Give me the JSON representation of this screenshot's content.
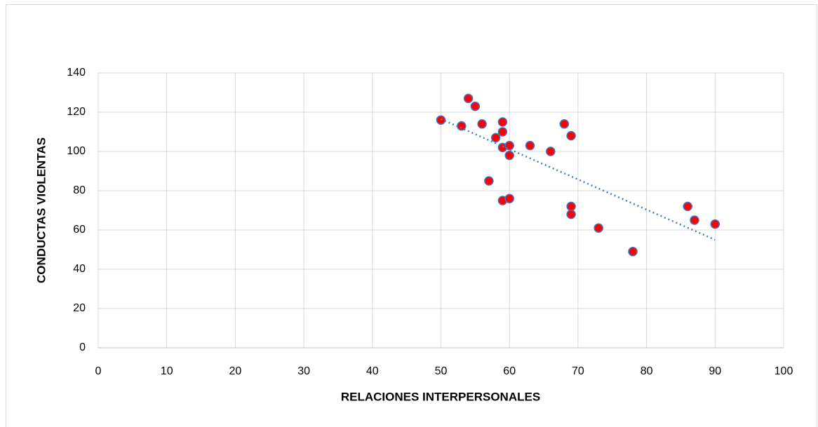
{
  "chart_data": {
    "type": "scatter",
    "x_label": "RELACIONES INTERPERSONALES",
    "y_label": "CONDUCTAS VIOLENTAS",
    "x": [
      50,
      53,
      54,
      55,
      56,
      57,
      58,
      59,
      59,
      59,
      59,
      60,
      60,
      60,
      63,
      66,
      68,
      69,
      69,
      69,
      73,
      78,
      86,
      87,
      90
    ],
    "series": [
      {
        "color": "#ff0000",
        "values": [
          116,
          113,
          127,
          123,
          114,
          85,
          107,
          115,
          110,
          102,
          75,
          103,
          98,
          76,
          103,
          100,
          114,
          108,
          72,
          68,
          61,
          49,
          72,
          65,
          63
        ]
      }
    ],
    "trendline": {
      "x": [
        50,
        90
      ],
      "y": [
        116.5,
        55
      ],
      "color": "#4a7ebb"
    },
    "xlim": [
      0,
      100
    ],
    "xticks": [
      0,
      10,
      20,
      30,
      40,
      50,
      60,
      70,
      80,
      90,
      100
    ],
    "ylim": [
      0,
      140
    ],
    "yticks": [
      0,
      20,
      40,
      60,
      80,
      100,
      120,
      140
    ],
    "grid": true
  }
}
